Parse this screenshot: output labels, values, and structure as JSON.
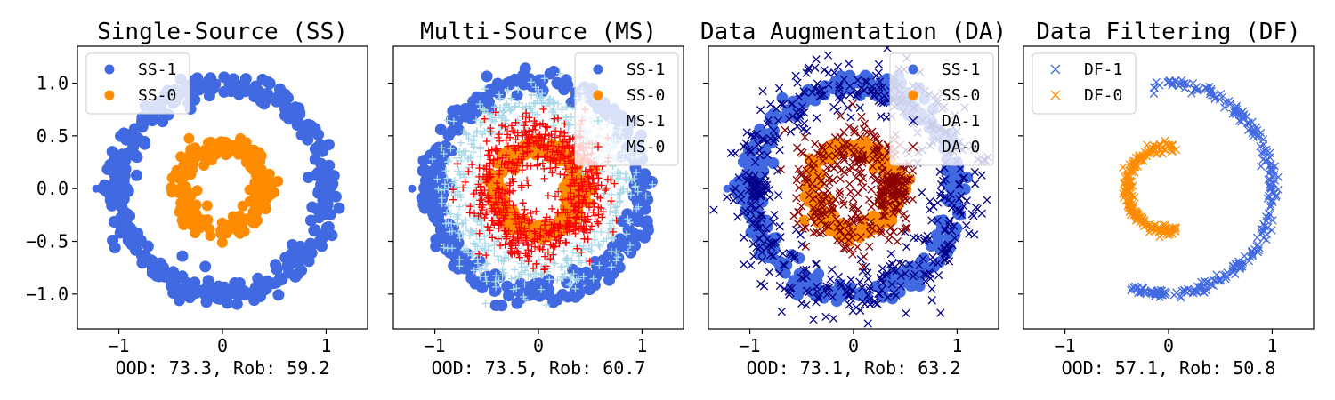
{
  "chart_data": [
    {
      "type": "scatter",
      "title": "Single-Source (SS)",
      "xlabel": "OOD: 73.3, Rob: 59.2",
      "ylabel": "",
      "xlim": [
        -1.4,
        1.4
      ],
      "ylim": [
        -1.33,
        1.35
      ],
      "xticks": [
        -1,
        0,
        1
      ],
      "yticks": [
        1.0,
        0.5,
        0.0,
        -0.5,
        -1.0
      ],
      "ytick_labels": [
        "1.0",
        "0.5",
        "0.0",
        "−0.5",
        "−1.0"
      ],
      "xtick_labels": [
        "−1",
        "0",
        "1"
      ],
      "legend_position": "top-left",
      "series": [
        {
          "name": "SS-1",
          "color": "#4169e1",
          "marker": "circle",
          "shape": "ring",
          "radius": 1.0,
          "width": 0.06,
          "arc": [
            0,
            360
          ],
          "blob_at": [
            -1.03,
            0.0
          ],
          "count": 360
        },
        {
          "name": "SS-0",
          "color": "#ff8c00",
          "marker": "circle",
          "shape": "ring",
          "radius": 0.4,
          "width": 0.05,
          "arc": [
            0,
            360
          ],
          "blob_at": [
            0.4,
            0.0
          ],
          "count": 230
        }
      ]
    },
    {
      "type": "scatter",
      "title": "Multi-Source (MS)",
      "xlabel": "OOD: 73.5, Rob: 60.7",
      "ylabel": "",
      "xlim": [
        -1.4,
        1.4
      ],
      "ylim": [
        -1.33,
        1.35
      ],
      "xticks": [
        -1,
        0,
        1
      ],
      "yticks": [
        1.0,
        0.5,
        0.0,
        -0.5,
        -1.0
      ],
      "xtick_labels": [
        "−1",
        "0",
        "1"
      ],
      "legend_position": "top-right",
      "series": [
        {
          "name": "SS-1",
          "color": "#4169e1",
          "marker": "circle",
          "shape": "ring",
          "radius": 1.0,
          "width": 0.06,
          "arc": [
            0,
            360
          ],
          "blob_at": [
            -1.03,
            0.0
          ],
          "count": 330
        },
        {
          "name": "SS-0",
          "color": "#ff8c00",
          "marker": "circle",
          "shape": "ring",
          "radius": 0.4,
          "width": 0.05,
          "arc": [
            0,
            360
          ],
          "blob_at": [
            0.4,
            0.0
          ],
          "count": 200
        },
        {
          "name": "MS-1",
          "color": "#a8d8ea",
          "marker": "plus",
          "shape": "ring",
          "radius": 0.8,
          "width": 0.13,
          "arc": [
            0,
            360
          ],
          "count": 520
        },
        {
          "name": "MS-0",
          "color": "#ff0000",
          "marker": "plus",
          "shape": "ring",
          "radius": 0.5,
          "width": 0.13,
          "arc": [
            0,
            360
          ],
          "count": 620
        }
      ]
    },
    {
      "type": "scatter",
      "title": "Data Augmentation (DA)",
      "xlabel": "OOD: 73.1, Rob: 63.2",
      "ylabel": "",
      "xlim": [
        -1.4,
        1.4
      ],
      "ylim": [
        -1.33,
        1.35
      ],
      "xticks": [
        -1,
        0,
        1
      ],
      "yticks": [
        1.0,
        0.5,
        0.0,
        -0.5,
        -1.0
      ],
      "xtick_labels": [
        "−1",
        "0",
        "1"
      ],
      "legend_position": "top-right",
      "series": [
        {
          "name": "SS-1",
          "color": "#4169e1",
          "marker": "circle",
          "shape": "ring",
          "radius": 1.0,
          "width": 0.06,
          "arc": [
            0,
            360
          ],
          "blob_at": [
            -1.03,
            0.0
          ],
          "count": 330
        },
        {
          "name": "SS-0",
          "color": "#ff8c00",
          "marker": "circle",
          "shape": "ring",
          "radius": 0.4,
          "width": 0.05,
          "arc": [
            0,
            360
          ],
          "blob_at": [
            0.4,
            0.0
          ],
          "count": 200
        },
        {
          "name": "DA-1",
          "color": "#00008b",
          "marker": "x",
          "shape": "ring",
          "radius": 1.0,
          "width": 0.14,
          "arc": [
            0,
            360
          ],
          "count": 460
        },
        {
          "name": "DA-0",
          "color": "#8b0000",
          "marker": "x",
          "shape": "ring",
          "radius": 0.4,
          "width": 0.14,
          "arc": [
            0,
            360
          ],
          "count": 300
        }
      ]
    },
    {
      "type": "scatter",
      "title": "Data Filtering (DF)",
      "xlabel": "OOD: 57.1, Rob: 50.8",
      "ylabel": "",
      "xlim": [
        -1.4,
        1.4
      ],
      "ylim": [
        -1.33,
        1.35
      ],
      "xticks": [
        -1,
        0,
        1
      ],
      "yticks": [
        1.0,
        0.5,
        0.0,
        -0.5,
        -1.0
      ],
      "xtick_labels": [
        "−1",
        "0",
        "1"
      ],
      "legend_position": "top-left",
      "series": [
        {
          "name": "DF-1",
          "color": "#4169e1",
          "marker": "x",
          "shape": "ring",
          "radius": 1.0,
          "width": 0.025,
          "arc": [
            -112,
            100
          ],
          "count": 260
        },
        {
          "name": "DF-0",
          "color": "#ff8c00",
          "marker": "x",
          "shape": "ring",
          "radius": 0.4,
          "width": 0.025,
          "arc": [
            78,
            282
          ],
          "count": 200
        }
      ]
    }
  ]
}
